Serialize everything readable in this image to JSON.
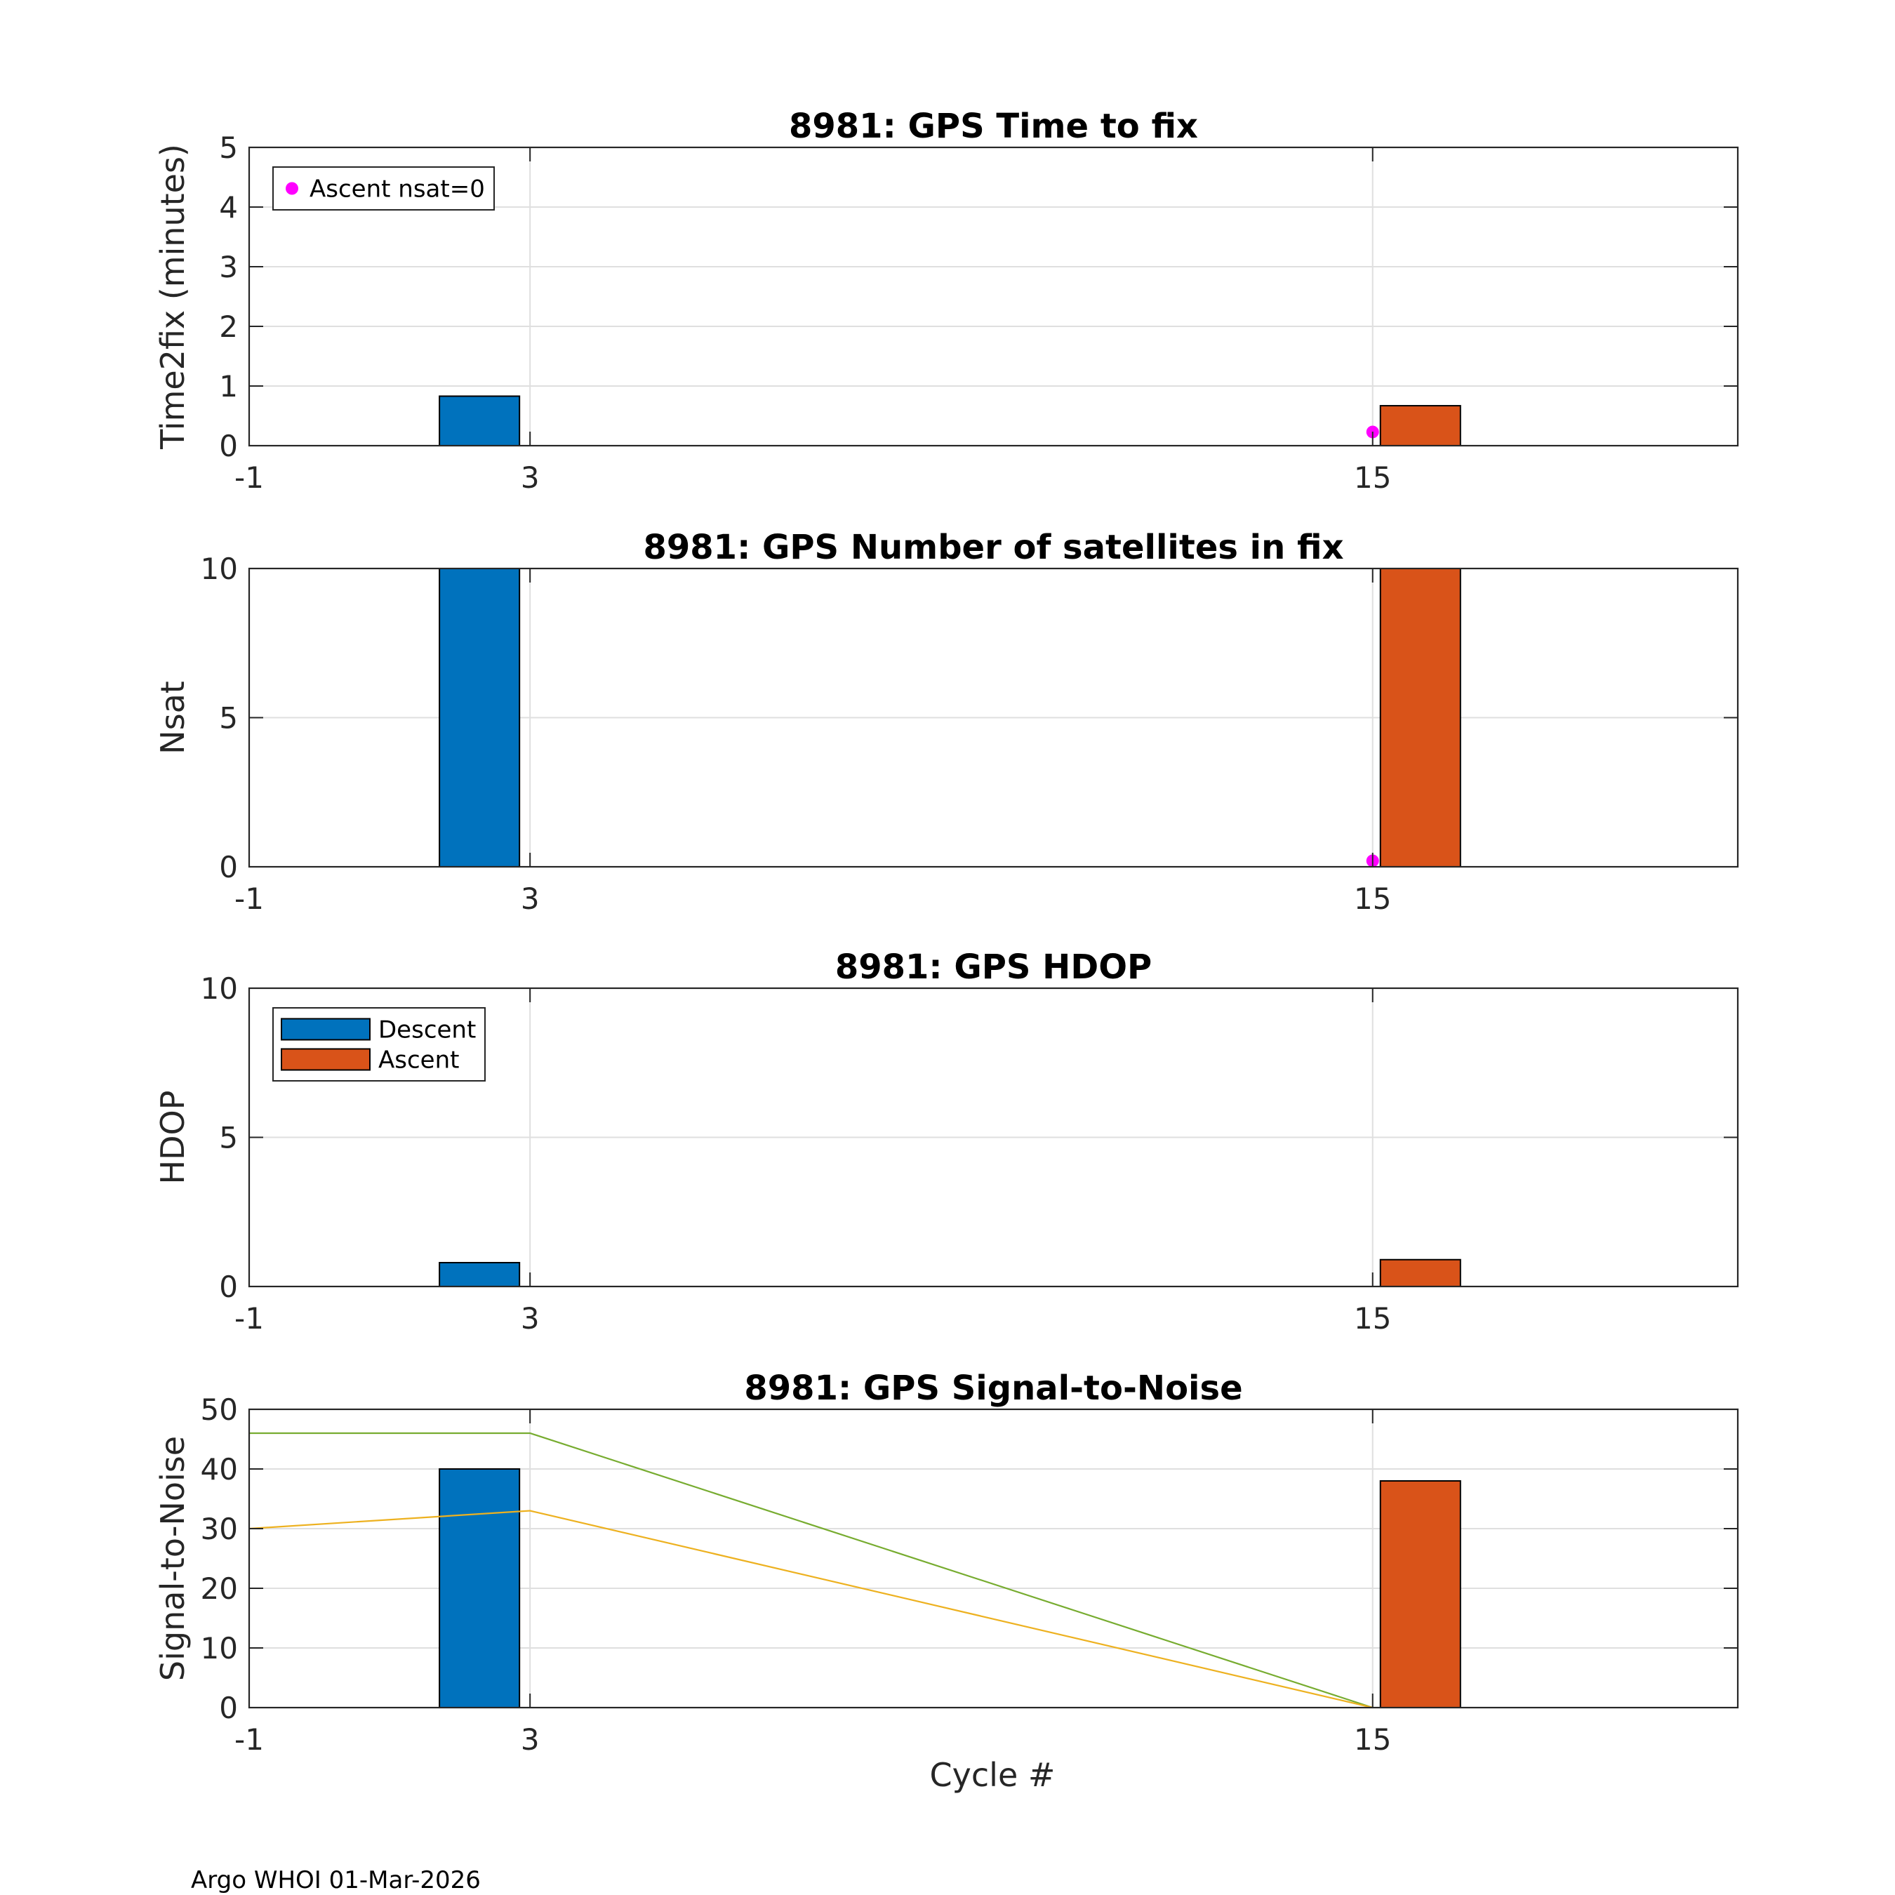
{
  "footer": "Argo WHOI 01-Mar-2026",
  "xlabel": "Cycle #",
  "colors": {
    "descent": "#0072bd",
    "ascent": "#d95319",
    "nsat0_marker": "#ff00ff",
    "snr_line_a": "#77ac30",
    "snr_line_b": "#edb120",
    "grid": "#dfdfdf",
    "axis": "#262626"
  },
  "chart_data": [
    {
      "id": "time2fix",
      "type": "bar",
      "title": "8981: GPS Time to fix",
      "xlabel": "",
      "ylabel": "Time2fix (minutes)",
      "xlim": [
        -1,
        20.2
      ],
      "ylim": [
        0,
        5
      ],
      "xticks": [
        -1,
        3,
        15
      ],
      "yticks": [
        0,
        1,
        2,
        3,
        4,
        5
      ],
      "bar_width": 1.14,
      "series": [
        {
          "name": "Descent",
          "color": "#0072bd",
          "x": [
            2.28
          ],
          "values": [
            0.83
          ]
        },
        {
          "name": "Ascent",
          "color": "#d95319",
          "x": [
            15.68
          ],
          "values": [
            0.67
          ]
        }
      ],
      "markers": [
        {
          "name": "Ascent nsat=0",
          "color": "#ff00ff",
          "x": [
            15
          ],
          "values": [
            0.23
          ]
        }
      ],
      "legend": {
        "location": "top-left",
        "entries": [
          {
            "label": "Ascent nsat=0",
            "kind": "marker",
            "color": "#ff00ff"
          }
        ]
      }
    },
    {
      "id": "nsat",
      "type": "bar",
      "title": "8981: GPS Number of satellites in fix",
      "xlabel": "",
      "ylabel": "Nsat",
      "xlim": [
        -1,
        20.2
      ],
      "ylim": [
        0,
        10
      ],
      "xticks": [
        -1,
        3,
        15
      ],
      "yticks": [
        0,
        5,
        10
      ],
      "bar_width": 1.14,
      "series": [
        {
          "name": "Descent",
          "color": "#0072bd",
          "x": [
            2.28
          ],
          "values": [
            10
          ]
        },
        {
          "name": "Ascent",
          "color": "#d95319",
          "x": [
            15.68
          ],
          "values": [
            10
          ]
        }
      ],
      "markers": [
        {
          "name": "Ascent nsat=0",
          "color": "#ff00ff",
          "x": [
            15
          ],
          "values": [
            0.2
          ]
        }
      ]
    },
    {
      "id": "hdop",
      "type": "bar",
      "title": "8981: GPS HDOP",
      "xlabel": "",
      "ylabel": "HDOP",
      "xlim": [
        -1,
        20.2
      ],
      "ylim": [
        0,
        10
      ],
      "xticks": [
        -1,
        3,
        15
      ],
      "yticks": [
        0,
        5,
        10
      ],
      "bar_width": 1.14,
      "series": [
        {
          "name": "Descent",
          "color": "#0072bd",
          "x": [
            2.28
          ],
          "values": [
            0.8
          ]
        },
        {
          "name": "Ascent",
          "color": "#d95319",
          "x": [
            15.68
          ],
          "values": [
            0.9
          ]
        }
      ],
      "legend": {
        "location": "top-left",
        "entries": [
          {
            "label": "Descent",
            "kind": "patch",
            "color": "#0072bd"
          },
          {
            "label": "Ascent",
            "kind": "patch",
            "color": "#d95319"
          }
        ]
      }
    },
    {
      "id": "snr",
      "type": "bar",
      "title": "8981: GPS Signal-to-Noise",
      "xlabel": "Cycle #",
      "ylabel": "Signal-to-Noise",
      "xlim": [
        -1,
        20.2
      ],
      "ylim": [
        0,
        50
      ],
      "xticks": [
        -1,
        3,
        15
      ],
      "yticks": [
        0,
        10,
        20,
        30,
        40,
        50
      ],
      "bar_width": 1.14,
      "series": [
        {
          "name": "Descent",
          "color": "#0072bd",
          "x": [
            2.28
          ],
          "values": [
            40
          ]
        },
        {
          "name": "Ascent",
          "color": "#d95319",
          "x": [
            15.68
          ],
          "values": [
            38
          ]
        }
      ],
      "lines": [
        {
          "name": "snr-line-a",
          "color": "#77ac30",
          "x": [
            -1,
            3,
            15
          ],
          "values": [
            46,
            46,
            0
          ]
        },
        {
          "name": "snr-line-b",
          "color": "#edb120",
          "x": [
            -1,
            3,
            15
          ],
          "values": [
            30,
            33,
            0
          ]
        }
      ]
    }
  ]
}
